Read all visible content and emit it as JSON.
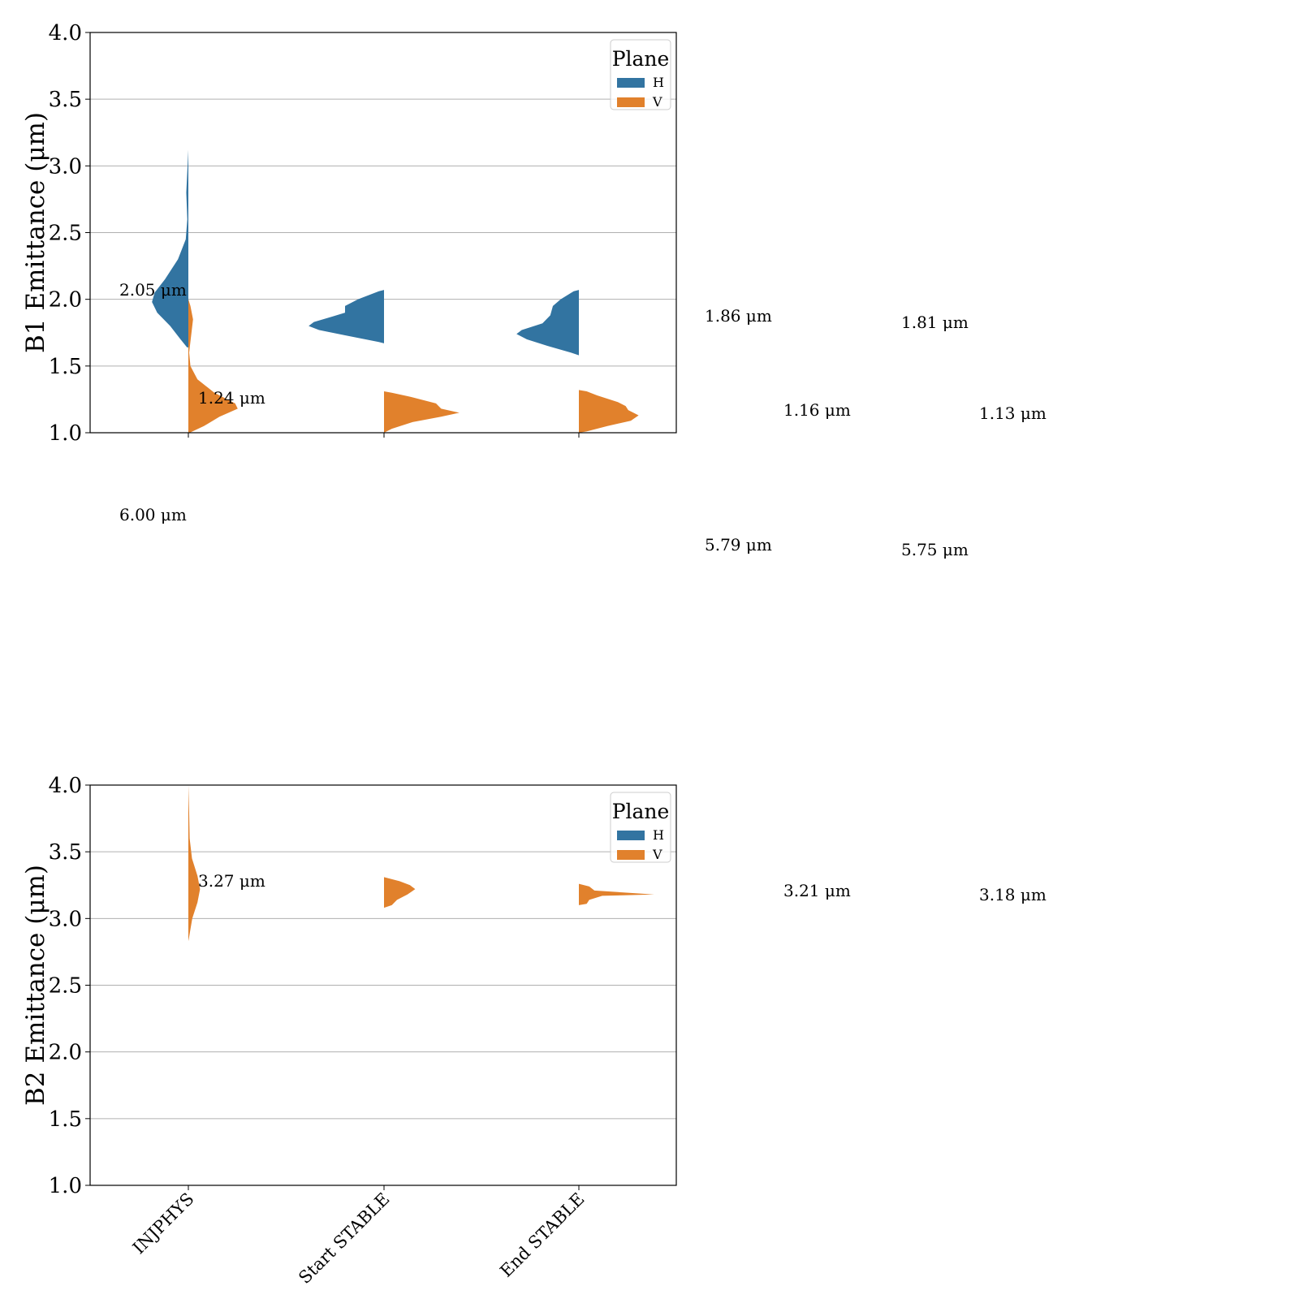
{
  "chart_data": [
    {
      "type": "violin",
      "ylabel": "B1 Emittance (μm)",
      "ylim": [
        1.0,
        4.0
      ],
      "yticks": [
        "1.0",
        "1.5",
        "2.0",
        "2.5",
        "3.0",
        "3.5",
        "4.0"
      ],
      "categories": [
        "INJPHYS",
        "Start STABLE",
        "End STABLE"
      ],
      "grid": "horizontal",
      "legend": {
        "title": "Plane",
        "position": "top-right",
        "entries": [
          "H",
          "V"
        ]
      },
      "series": [
        {
          "name": "H",
          "color": "#3274a1",
          "side": "left",
          "medians": [
            2.05,
            1.86,
            1.81
          ],
          "annotations": [
            "2.05 μm",
            "1.86 μm",
            "1.81 μm"
          ]
        },
        {
          "name": "V",
          "color": "#e1812c",
          "side": "right",
          "medians": [
            1.24,
            1.16,
            1.13
          ],
          "annotations": [
            "1.24 μm",
            "1.16 μm",
            "1.13 μm"
          ]
        }
      ],
      "extra_annotations": [
        "6.00 μm",
        "5.79 μm",
        "5.75 μm"
      ]
    },
    {
      "type": "violin",
      "ylabel": "B2 Emittance (μm)",
      "ylim": [
        1.0,
        4.0
      ],
      "yticks": [
        "1.0",
        "1.5",
        "2.0",
        "2.5",
        "3.0",
        "3.5",
        "4.0"
      ],
      "categories": [
        "INJPHYS",
        "Start STABLE",
        "End STABLE"
      ],
      "grid": "horizontal",
      "legend": {
        "title": "Plane",
        "position": "top-right",
        "entries": [
          "H",
          "V"
        ]
      },
      "series": [
        {
          "name": "H",
          "color": "#3274a1",
          "side": "left",
          "medians": [],
          "annotations": []
        },
        {
          "name": "V",
          "color": "#e1812c",
          "side": "right",
          "medians": [
            3.27,
            3.21,
            3.18
          ],
          "annotations": [
            "3.27 μm",
            "3.21 μm",
            "3.18 μm"
          ]
        }
      ]
    }
  ]
}
